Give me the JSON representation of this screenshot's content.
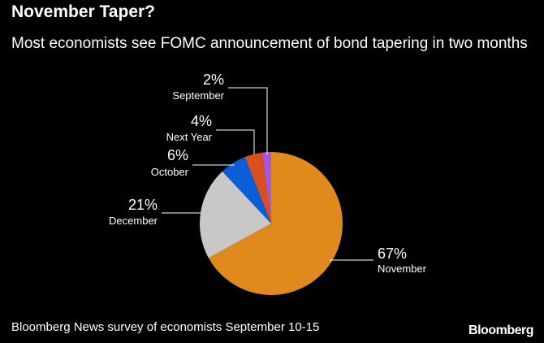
{
  "header": {
    "title": "November Taper?",
    "subtitle": "Most economists see FOMC announcement of bond tapering in two months"
  },
  "footer": {
    "source": "Bloomberg News survey of economists September 10-15",
    "brand": "Bloomberg"
  },
  "chart_data": {
    "type": "pie",
    "title": "November Taper?",
    "subtitle": "Most economists see FOMC announcement of bond tapering in two months",
    "slices": [
      {
        "label": "November",
        "value": 67,
        "display": "67%",
        "color": "#e08a1e"
      },
      {
        "label": "December",
        "value": 21,
        "display": "21%",
        "color": "#c8c8c8"
      },
      {
        "label": "October",
        "value": 6,
        "display": "6%",
        "color": "#0b5ed7"
      },
      {
        "label": "Next Year",
        "value": 4,
        "display": "4%",
        "color": "#d9501e"
      },
      {
        "label": "September",
        "value": 2,
        "display": "2%",
        "color": "#a559d9"
      }
    ],
    "start": "12 o'clock, clockwise",
    "leader_color": "#ffffff"
  }
}
